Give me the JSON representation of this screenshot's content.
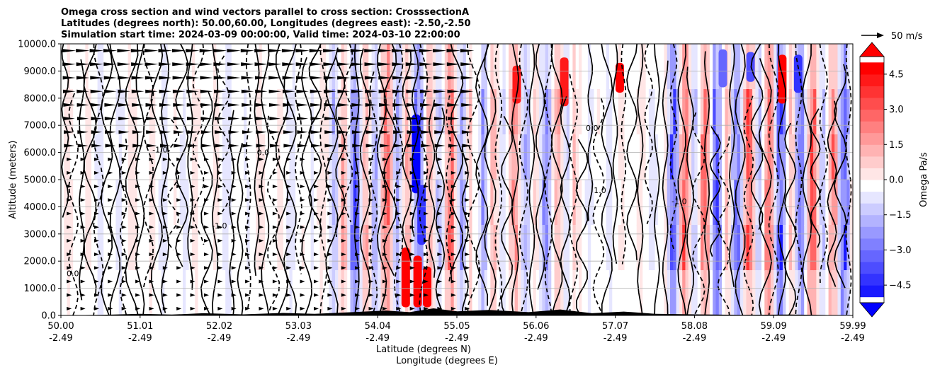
{
  "chart_data": {
    "type": "heatmap",
    "title_lines": [
      "Omega cross section and wind vectors parallel to cross section: CrosssectionA",
      "Latitudes (degrees north): 50.00,60.00, Longitudes (degrees east): -2.50,-2.50",
      "Simulation start time: 2024-03-09 00:00:00, Valid time: 2024-03-10 22:00:00"
    ],
    "ylabel": "Altitude (meters)",
    "xlabel_lat": "Latitude (degrees N)",
    "xlabel_lon": "Longitude (degrees E)",
    "ylim": [
      0,
      10000
    ],
    "yticks": [
      0,
      1000,
      2000,
      3000,
      4000,
      5000,
      6000,
      7000,
      8000,
      9000,
      10000
    ],
    "ytick_labels": [
      "0.0",
      "1000.0",
      "2000.0",
      "3000.0",
      "4000.0",
      "5000.0",
      "6000.0",
      "7000.0",
      "8000.0",
      "9000.0",
      "10000.0"
    ],
    "xlim": [
      50.0,
      59.99
    ],
    "xticks_lat": [
      "50.00",
      "51.01",
      "52.02",
      "53.03",
      "54.04",
      "55.05",
      "56.06",
      "57.07",
      "58.08",
      "59.09",
      "59.99"
    ],
    "xticks_lon": [
      "-2.49",
      "-2.49",
      "-2.49",
      "-2.49",
      "-2.49",
      "-2.49",
      "-2.49",
      "-2.49",
      "-2.49",
      "-2.49",
      "-2.49"
    ],
    "grid": true,
    "colorbar": {
      "label": "Omega Pa/s",
      "range": [
        -5.25,
        5.25
      ],
      "ticks": [
        -4.5,
        -3.0,
        -1.5,
        0.0,
        1.5,
        3.0,
        4.5
      ],
      "tick_labels": [
        "−4.5",
        "−3.0",
        "−1.5",
        "0.0",
        "1.5",
        "3.0",
        "4.5"
      ],
      "colormap": "bwr",
      "extend": "both"
    },
    "quiver_key": {
      "label": "50 m/s",
      "value": 50
    },
    "contour_labels_sample": [
      {
        "text": "0.0",
        "lat": 52.55,
        "alt": 5900
      },
      {
        "text": "-1.0",
        "lat": 57.8,
        "alt": 4100
      },
      {
        "text": "-1.0",
        "lat": 51.25,
        "alt": 6000
      },
      {
        "text": "0.0",
        "lat": 50.15,
        "alt": 1450
      },
      {
        "text": "-1.0",
        "lat": 52.0,
        "alt": 3200
      },
      {
        "text": "1.0",
        "lat": 56.8,
        "alt": 4500
      },
      {
        "text": "0.0",
        "lat": 56.7,
        "alt": 6800
      }
    ],
    "colors": {
      "strong_negative": "#0000ff",
      "neutral": "#ffffff",
      "strong_positive": "#ff0000",
      "terrain": "#000000",
      "grid": "#b0b0b0"
    }
  }
}
